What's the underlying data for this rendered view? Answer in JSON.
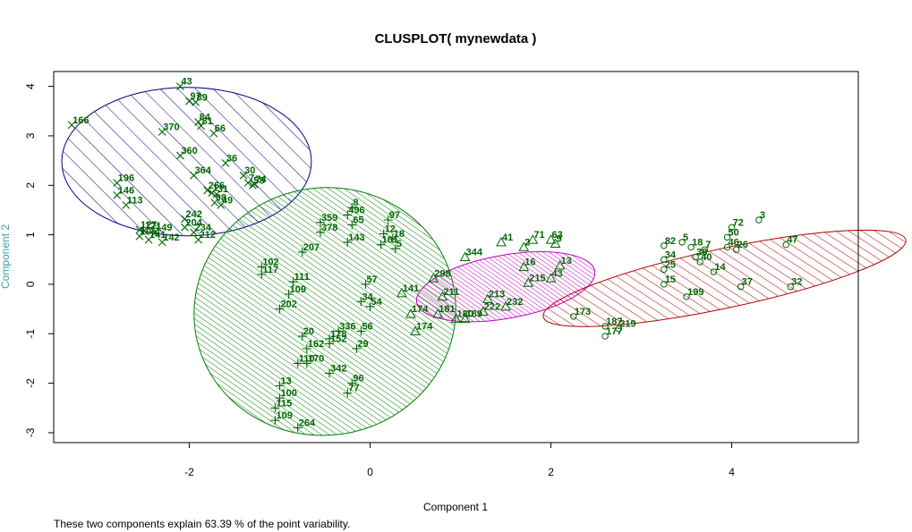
{
  "chart_data": {
    "type": "scatter",
    "title": "CLUSPLOT( mynewdata )",
    "xlabel": "Component 1",
    "ylabel": "Component 2",
    "xlim": [
      -3.5,
      5.4
    ],
    "ylim": [
      -3.2,
      4.3
    ],
    "xticks": [
      -2,
      0,
      2,
      4
    ],
    "yticks": [
      -3,
      -2,
      -1,
      0,
      1,
      2,
      3,
      4
    ],
    "grid": false,
    "footnote": "These two components explain 63.39 % of the point variability.",
    "colors": {
      "points": "#006400",
      "labels": "#006400",
      "ellipse1": "#000080",
      "ellipse2": "#008000",
      "ellipse3": "#c000c0",
      "ellipse4": "#b00000"
    },
    "clusters": [
      {
        "id": 1,
        "marker": "x",
        "color": "#000080",
        "ellipse": {
          "cx": -2.03,
          "cy": 2.48,
          "rx": 1.38,
          "ry": 1.5,
          "angle": 0
        },
        "points": [
          {
            "x": -2.1,
            "y": 4.0,
            "label": "43"
          },
          {
            "x": -2.0,
            "y": 3.7,
            "label": "97"
          },
          {
            "x": -1.93,
            "y": 3.68,
            "label": "89"
          },
          {
            "x": -3.3,
            "y": 3.22,
            "label": "166"
          },
          {
            "x": -2.3,
            "y": 3.08,
            "label": "370"
          },
          {
            "x": -1.9,
            "y": 3.28,
            "label": "84"
          },
          {
            "x": -1.87,
            "y": 3.2,
            "label": "81"
          },
          {
            "x": -1.73,
            "y": 3.05,
            "label": "66"
          },
          {
            "x": -2.1,
            "y": 2.6,
            "label": "360"
          },
          {
            "x": -1.6,
            "y": 2.45,
            "label": "36"
          },
          {
            "x": -1.4,
            "y": 2.2,
            "label": "30"
          },
          {
            "x": -1.95,
            "y": 2.2,
            "label": "364"
          },
          {
            "x": -1.35,
            "y": 2.05,
            "label": "7"
          },
          {
            "x": -1.3,
            "y": 2.0,
            "label": "58"
          },
          {
            "x": -1.28,
            "y": 2.02,
            "label": "74"
          },
          {
            "x": -2.8,
            "y": 2.05,
            "label": "196"
          },
          {
            "x": -1.8,
            "y": 1.9,
            "label": "266"
          },
          {
            "x": -1.75,
            "y": 1.85,
            "label": "1"
          },
          {
            "x": -1.7,
            "y": 1.82,
            "label": "31"
          },
          {
            "x": -2.8,
            "y": 1.8,
            "label": "146"
          },
          {
            "x": -1.72,
            "y": 1.65,
            "label": "98"
          },
          {
            "x": -1.65,
            "y": 1.6,
            "label": "49"
          },
          {
            "x": -2.7,
            "y": 1.6,
            "label": "113"
          },
          {
            "x": -2.05,
            "y": 1.32,
            "label": "242"
          },
          {
            "x": -2.05,
            "y": 1.15,
            "label": "204"
          },
          {
            "x": -2.55,
            "y": 1.1,
            "label": "127"
          },
          {
            "x": -2.5,
            "y": 1.08,
            "label": "121"
          },
          {
            "x": -2.38,
            "y": 1.05,
            "label": "149"
          },
          {
            "x": -1.95,
            "y": 1.05,
            "label": "234"
          },
          {
            "x": -2.55,
            "y": 0.97,
            "label": "105"
          },
          {
            "x": -2.45,
            "y": 0.9,
            "label": "141"
          },
          {
            "x": -2.3,
            "y": 0.85,
            "label": "142"
          },
          {
            "x": -1.9,
            "y": 0.9,
            "label": "212"
          }
        ]
      },
      {
        "id": 2,
        "marker": "+",
        "color": "#008000",
        "ellipse": {
          "cx": -0.5,
          "cy": -0.55,
          "rx": 1.45,
          "ry": 2.5,
          "angle": 10
        },
        "points": [
          {
            "x": -0.25,
            "y": 1.4,
            "label": "496"
          },
          {
            "x": -0.2,
            "y": 1.55,
            "label": "8"
          },
          {
            "x": 0.2,
            "y": 1.3,
            "label": "97"
          },
          {
            "x": -0.55,
            "y": 1.25,
            "label": "359"
          },
          {
            "x": -0.2,
            "y": 1.2,
            "label": "65"
          },
          {
            "x": -0.55,
            "y": 1.05,
            "label": "378"
          },
          {
            "x": 0.15,
            "y": 1.02,
            "label": "12"
          },
          {
            "x": 0.25,
            "y": 0.92,
            "label": "18"
          },
          {
            "x": -0.25,
            "y": 0.85,
            "label": "143"
          },
          {
            "x": 0.12,
            "y": 0.8,
            "label": "101"
          },
          {
            "x": 0.28,
            "y": 0.72,
            "label": "5"
          },
          {
            "x": -0.75,
            "y": 0.65,
            "label": "207"
          },
          {
            "x": -1.2,
            "y": 0.35,
            "label": "102"
          },
          {
            "x": -1.2,
            "y": 0.2,
            "label": "117"
          },
          {
            "x": -0.85,
            "y": 0.05,
            "label": "111"
          },
          {
            "x": -0.05,
            "y": 0.0,
            "label": "57"
          },
          {
            "x": -0.9,
            "y": -0.2,
            "label": "109"
          },
          {
            "x": -0.1,
            "y": -0.35,
            "label": "34"
          },
          {
            "x": 0.0,
            "y": -0.45,
            "label": "54"
          },
          {
            "x": -1.0,
            "y": -0.5,
            "label": "202"
          },
          {
            "x": -0.35,
            "y": -0.95,
            "label": "336"
          },
          {
            "x": -0.1,
            "y": -0.95,
            "label": "56"
          },
          {
            "x": -0.75,
            "y": -1.05,
            "label": "20"
          },
          {
            "x": -0.45,
            "y": -1.1,
            "label": "178"
          },
          {
            "x": -0.45,
            "y": -1.2,
            "label": "152"
          },
          {
            "x": -0.15,
            "y": -1.3,
            "label": "29"
          },
          {
            "x": -0.7,
            "y": -1.3,
            "label": "162"
          },
          {
            "x": -0.8,
            "y": -1.6,
            "label": "110"
          },
          {
            "x": -0.7,
            "y": -1.6,
            "label": "170"
          },
          {
            "x": -0.45,
            "y": -1.8,
            "label": "342"
          },
          {
            "x": -0.2,
            "y": -2.0,
            "label": "96"
          },
          {
            "x": -0.25,
            "y": -2.2,
            "label": "77"
          },
          {
            "x": -1.0,
            "y": -2.05,
            "label": "13"
          },
          {
            "x": -1.0,
            "y": -2.3,
            "label": "100"
          },
          {
            "x": -1.05,
            "y": -2.5,
            "label": "115"
          },
          {
            "x": -1.05,
            "y": -2.75,
            "label": "109"
          },
          {
            "x": -0.8,
            "y": -2.9,
            "label": "264"
          }
        ]
      },
      {
        "id": 3,
        "marker": "triangle",
        "color": "#c000c0",
        "ellipse": {
          "cx": 1.5,
          "cy": -0.05,
          "rx": 1.0,
          "ry": 0.64,
          "angle": 10
        },
        "points": [
          {
            "x": 1.45,
            "y": 0.85,
            "label": "41"
          },
          {
            "x": 1.8,
            "y": 0.9,
            "label": "71"
          },
          {
            "x": 2.0,
            "y": 0.9,
            "label": "63"
          },
          {
            "x": 2.05,
            "y": 0.82,
            "label": "9"
          },
          {
            "x": 1.7,
            "y": 0.75,
            "label": "2"
          },
          {
            "x": 1.05,
            "y": 0.55,
            "label": "344"
          },
          {
            "x": 2.1,
            "y": 0.38,
            "label": "13"
          },
          {
            "x": 1.7,
            "y": 0.35,
            "label": "16"
          },
          {
            "x": 0.7,
            "y": 0.12,
            "label": "298"
          },
          {
            "x": 1.75,
            "y": 0.03,
            "label": "215"
          },
          {
            "x": 2.0,
            "y": 0.12,
            "label": "43"
          },
          {
            "x": 0.35,
            "y": -0.18,
            "label": "141"
          },
          {
            "x": 0.8,
            "y": -0.25,
            "label": "211"
          },
          {
            "x": 1.3,
            "y": -0.3,
            "label": "213"
          },
          {
            "x": 0.45,
            "y": -0.6,
            "label": "174"
          },
          {
            "x": 0.75,
            "y": -0.6,
            "label": "181"
          },
          {
            "x": 0.95,
            "y": -0.7,
            "label": "180"
          },
          {
            "x": 1.25,
            "y": -0.55,
            "label": "222"
          },
          {
            "x": 1.5,
            "y": -0.45,
            "label": "232"
          },
          {
            "x": 1.05,
            "y": -0.7,
            "label": "189"
          },
          {
            "x": 0.5,
            "y": -0.95,
            "label": "174"
          }
        ]
      },
      {
        "id": 4,
        "marker": "circle",
        "color": "#b00000",
        "ellipse": {
          "cx": 3.92,
          "cy": 0.12,
          "rx": 2.05,
          "ry": 0.6,
          "angle": 12
        },
        "points": [
          {
            "x": 4.3,
            "y": 1.3,
            "label": "3"
          },
          {
            "x": 4.0,
            "y": 1.15,
            "label": "72"
          },
          {
            "x": 4.6,
            "y": 0.8,
            "label": "47"
          },
          {
            "x": 3.95,
            "y": 0.95,
            "label": "50"
          },
          {
            "x": 3.25,
            "y": 0.78,
            "label": "82"
          },
          {
            "x": 3.45,
            "y": 0.85,
            "label": "5"
          },
          {
            "x": 3.55,
            "y": 0.75,
            "label": "18"
          },
          {
            "x": 3.7,
            "y": 0.7,
            "label": "7"
          },
          {
            "x": 3.95,
            "y": 0.75,
            "label": "46"
          },
          {
            "x": 4.05,
            "y": 0.7,
            "label": "26"
          },
          {
            "x": 3.25,
            "y": 0.5,
            "label": "34"
          },
          {
            "x": 3.6,
            "y": 0.55,
            "label": "38"
          },
          {
            "x": 3.65,
            "y": 0.45,
            "label": "40"
          },
          {
            "x": 3.25,
            "y": 0.3,
            "label": "25"
          },
          {
            "x": 3.8,
            "y": 0.25,
            "label": "14"
          },
          {
            "x": 3.25,
            "y": 0.0,
            "label": "15"
          },
          {
            "x": 4.1,
            "y": -0.05,
            "label": "37"
          },
          {
            "x": 4.65,
            "y": -0.05,
            "label": "32"
          },
          {
            "x": 3.5,
            "y": -0.25,
            "label": "199"
          },
          {
            "x": 2.25,
            "y": -0.65,
            "label": "173"
          },
          {
            "x": 2.6,
            "y": -0.85,
            "label": "187"
          },
          {
            "x": 2.75,
            "y": -0.9,
            "label": "219"
          },
          {
            "x": 2.6,
            "y": -1.05,
            "label": "177"
          }
        ]
      }
    ]
  }
}
